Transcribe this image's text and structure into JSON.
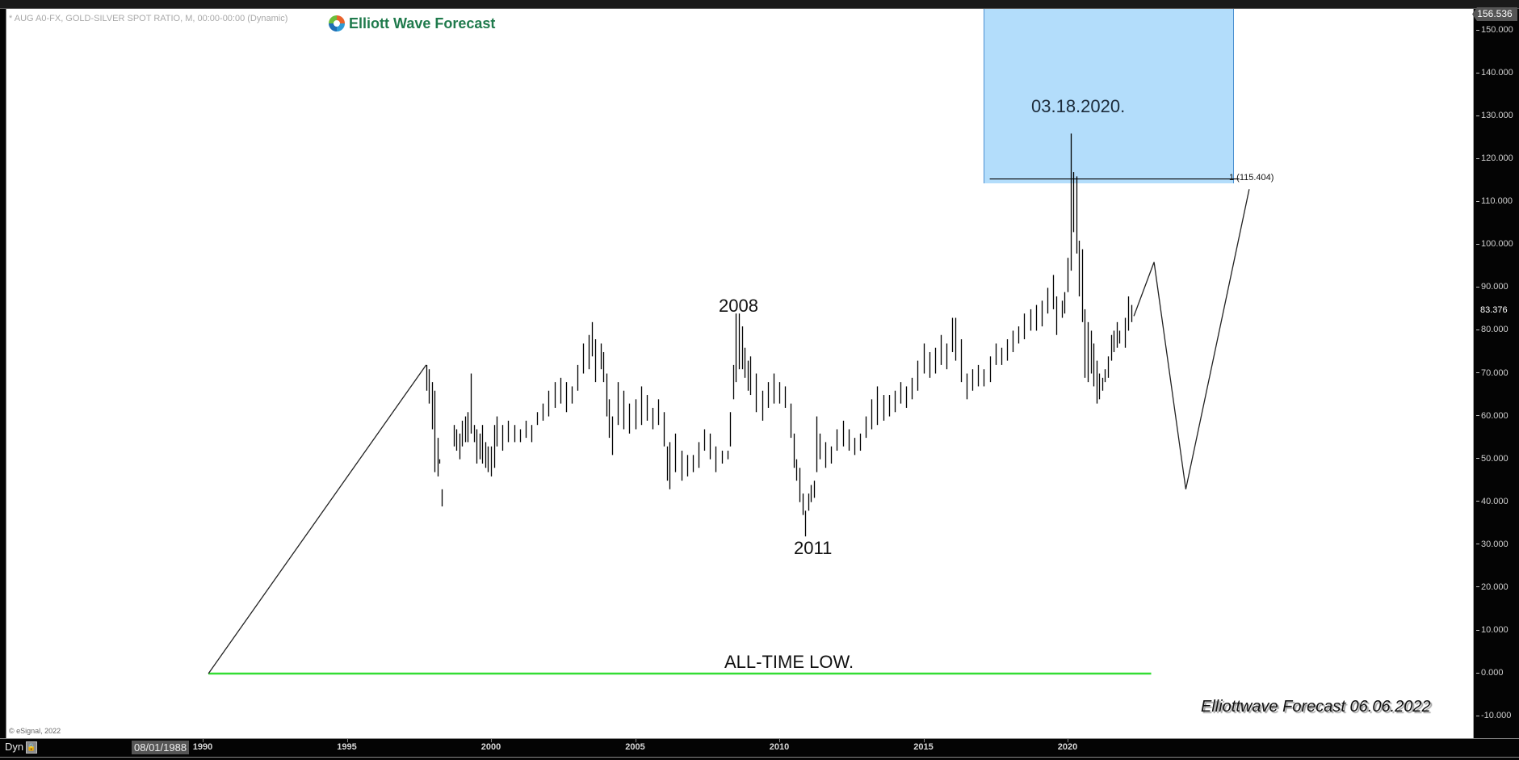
{
  "header": {
    "symbol_line": "* AUG A0-FX, GOLD-SILVER SPOT RATIO, M, 00:00-00:00 (Dynamic)",
    "logo_text": "Elliott Wave Forecast"
  },
  "footer": {
    "copyright": "© eSignal, 2022",
    "signature": "Elliottwave Forecast  06.06.2022",
    "dyn_label": "Dyn",
    "cursor_date": "08/01/1988"
  },
  "price_axis": {
    "top_badge": "156.536",
    "last_price": "83.376",
    "ticks": [
      "150.000",
      "140.000",
      "130.000",
      "120.000",
      "110.000",
      "100.000",
      "90.000",
      "80.000",
      "70.000",
      "60.000",
      "50.000",
      "40.000",
      "30.000",
      "20.000",
      "10.000",
      "0.000",
      "-10.000"
    ]
  },
  "time_axis": {
    "ticks": [
      "1990",
      "1995",
      "2000",
      "2005",
      "2010",
      "2015",
      "2020"
    ]
  },
  "annotations": {
    "label_2008": "2008",
    "label_2011": "2011",
    "label_peak": "03.18.2020.",
    "fib_label": "1 (115.404)",
    "all_time_low": "ALL-TIME LOW."
  },
  "colors": {
    "chart_bg": "#ffffff",
    "axis_bg": "#040404",
    "bars": "#000000",
    "target_box": "#b3ddfb",
    "all_time_low_line": "#33dd33",
    "logo_green": "#1f7a4c"
  },
  "chart_data": {
    "type": "ohlc-bar",
    "title": "GOLD-SILVER SPOT RATIO, Monthly",
    "xlabel": "",
    "ylabel": "",
    "ylim": [
      -14,
      157
    ],
    "xlim": [
      1989.4,
      2027.5
    ],
    "grid": false,
    "x_ticks": [
      1990,
      1995,
      2000,
      2005,
      2010,
      2015,
      2020
    ],
    "y_ticks": [
      -10,
      0,
      10,
      20,
      30,
      40,
      50,
      60,
      70,
      80,
      90,
      100,
      110,
      120,
      130,
      140,
      150
    ],
    "last_price": 83.376,
    "series": [
      {
        "name": "Gold/Silver ratio (monthly high-low, approx.)",
        "points": [
          {
            "t": 1997.75,
            "h": 72,
            "l": 66
          },
          {
            "t": 1997.85,
            "h": 71,
            "l": 63
          },
          {
            "t": 1997.95,
            "h": 68,
            "l": 57
          },
          {
            "t": 1998.05,
            "h": 66,
            "l": 47
          },
          {
            "t": 1998.15,
            "h": 55,
            "l": 46
          },
          {
            "t": 1998.2,
            "h": 50,
            "l": 49
          },
          {
            "t": 1998.3,
            "h": 43,
            "l": 39
          },
          {
            "t": 1998.7,
            "h": 58,
            "l": 53
          },
          {
            "t": 1998.8,
            "h": 57,
            "l": 52
          },
          {
            "t": 1998.9,
            "h": 56,
            "l": 50
          },
          {
            "t": 1999.0,
            "h": 59,
            "l": 53
          },
          {
            "t": 1999.1,
            "h": 60,
            "l": 54
          },
          {
            "t": 1999.2,
            "h": 61,
            "l": 54
          },
          {
            "t": 1999.3,
            "h": 70,
            "l": 56
          },
          {
            "t": 1999.4,
            "h": 58,
            "l": 54
          },
          {
            "t": 1999.5,
            "h": 57,
            "l": 49
          },
          {
            "t": 1999.6,
            "h": 56,
            "l": 50
          },
          {
            "t": 1999.7,
            "h": 58,
            "l": 49
          },
          {
            "t": 1999.8,
            "h": 54,
            "l": 48
          },
          {
            "t": 1999.9,
            "h": 53,
            "l": 47
          },
          {
            "t": 2000.0,
            "h": 53,
            "l": 46
          },
          {
            "t": 2000.1,
            "h": 58,
            "l": 48
          },
          {
            "t": 2000.2,
            "h": 60,
            "l": 53
          },
          {
            "t": 2000.4,
            "h": 58,
            "l": 52
          },
          {
            "t": 2000.6,
            "h": 59,
            "l": 54
          },
          {
            "t": 2000.8,
            "h": 58,
            "l": 54
          },
          {
            "t": 2001.0,
            "h": 57,
            "l": 54
          },
          {
            "t": 2001.2,
            "h": 59,
            "l": 55
          },
          {
            "t": 2001.4,
            "h": 58,
            "l": 54
          },
          {
            "t": 2001.6,
            "h": 61,
            "l": 58
          },
          {
            "t": 2001.8,
            "h": 63,
            "l": 59
          },
          {
            "t": 2002.0,
            "h": 66,
            "l": 60
          },
          {
            "t": 2002.2,
            "h": 68,
            "l": 62
          },
          {
            "t": 2002.4,
            "h": 69,
            "l": 63
          },
          {
            "t": 2002.6,
            "h": 68,
            "l": 61
          },
          {
            "t": 2002.8,
            "h": 67,
            "l": 63
          },
          {
            "t": 2003.0,
            "h": 72,
            "l": 66
          },
          {
            "t": 2003.2,
            "h": 77,
            "l": 70
          },
          {
            "t": 2003.4,
            "h": 79,
            "l": 71
          },
          {
            "t": 2003.5,
            "h": 82,
            "l": 74
          },
          {
            "t": 2003.6,
            "h": 78,
            "l": 68
          },
          {
            "t": 2003.8,
            "h": 77,
            "l": 71
          },
          {
            "t": 2003.9,
            "h": 75,
            "l": 68
          },
          {
            "t": 2004.0,
            "h": 70,
            "l": 60
          },
          {
            "t": 2004.1,
            "h": 64,
            "l": 55
          },
          {
            "t": 2004.2,
            "h": 60,
            "l": 51
          },
          {
            "t": 2004.4,
            "h": 68,
            "l": 58
          },
          {
            "t": 2004.6,
            "h": 66,
            "l": 57
          },
          {
            "t": 2004.8,
            "h": 63,
            "l": 56
          },
          {
            "t": 2005.0,
            "h": 64,
            "l": 57
          },
          {
            "t": 2005.2,
            "h": 67,
            "l": 58
          },
          {
            "t": 2005.4,
            "h": 65,
            "l": 59
          },
          {
            "t": 2005.6,
            "h": 62,
            "l": 57
          },
          {
            "t": 2005.8,
            "h": 64,
            "l": 58
          },
          {
            "t": 2006.0,
            "h": 61,
            "l": 53
          },
          {
            "t": 2006.1,
            "h": 53,
            "l": 45
          },
          {
            "t": 2006.2,
            "h": 54,
            "l": 43
          },
          {
            "t": 2006.4,
            "h": 56,
            "l": 47
          },
          {
            "t": 2006.6,
            "h": 52,
            "l": 45
          },
          {
            "t": 2006.8,
            "h": 51,
            "l": 46
          },
          {
            "t": 2007.0,
            "h": 51,
            "l": 47
          },
          {
            "t": 2007.2,
            "h": 54,
            "l": 48
          },
          {
            "t": 2007.4,
            "h": 57,
            "l": 52
          },
          {
            "t": 2007.6,
            "h": 56,
            "l": 50
          },
          {
            "t": 2007.8,
            "h": 53,
            "l": 47
          },
          {
            "t": 2008.0,
            "h": 52,
            "l": 49
          },
          {
            "t": 2008.2,
            "h": 52,
            "l": 50
          },
          {
            "t": 2008.3,
            "h": 61,
            "l": 53
          },
          {
            "t": 2008.4,
            "h": 72,
            "l": 64
          },
          {
            "t": 2008.5,
            "h": 84,
            "l": 68
          },
          {
            "t": 2008.6,
            "h": 84,
            "l": 71
          },
          {
            "t": 2008.7,
            "h": 81,
            "l": 71
          },
          {
            "t": 2008.8,
            "h": 76,
            "l": 69
          },
          {
            "t": 2008.9,
            "h": 73,
            "l": 66
          },
          {
            "t": 2009.0,
            "h": 74,
            "l": 65
          },
          {
            "t": 2009.2,
            "h": 70,
            "l": 61
          },
          {
            "t": 2009.4,
            "h": 66,
            "l": 59
          },
          {
            "t": 2009.6,
            "h": 68,
            "l": 62
          },
          {
            "t": 2009.8,
            "h": 70,
            "l": 63
          },
          {
            "t": 2010.0,
            "h": 68,
            "l": 63
          },
          {
            "t": 2010.2,
            "h": 67,
            "l": 62
          },
          {
            "t": 2010.4,
            "h": 63,
            "l": 55
          },
          {
            "t": 2010.5,
            "h": 56,
            "l": 48
          },
          {
            "t": 2010.6,
            "h": 50,
            "l": 45
          },
          {
            "t": 2010.7,
            "h": 48,
            "l": 40
          },
          {
            "t": 2010.8,
            "h": 42,
            "l": 37
          },
          {
            "t": 2010.9,
            "h": 38,
            "l": 32
          },
          {
            "t": 2011.0,
            "h": 42,
            "l": 38
          },
          {
            "t": 2011.1,
            "h": 44,
            "l": 40
          },
          {
            "t": 2011.2,
            "h": 45,
            "l": 41
          },
          {
            "t": 2011.3,
            "h": 60,
            "l": 47
          },
          {
            "t": 2011.4,
            "h": 56,
            "l": 50
          },
          {
            "t": 2011.6,
            "h": 54,
            "l": 48
          },
          {
            "t": 2011.8,
            "h": 53,
            "l": 49
          },
          {
            "t": 2012.0,
            "h": 57,
            "l": 52
          },
          {
            "t": 2012.2,
            "h": 59,
            "l": 53
          },
          {
            "t": 2012.4,
            "h": 57,
            "l": 52
          },
          {
            "t": 2012.6,
            "h": 55,
            "l": 51
          },
          {
            "t": 2012.8,
            "h": 56,
            "l": 52
          },
          {
            "t": 2013.0,
            "h": 60,
            "l": 55
          },
          {
            "t": 2013.2,
            "h": 64,
            "l": 57
          },
          {
            "t": 2013.4,
            "h": 67,
            "l": 58
          },
          {
            "t": 2013.6,
            "h": 65,
            "l": 59
          },
          {
            "t": 2013.8,
            "h": 65,
            "l": 60
          },
          {
            "t": 2014.0,
            "h": 66,
            "l": 61
          },
          {
            "t": 2014.2,
            "h": 68,
            "l": 63
          },
          {
            "t": 2014.4,
            "h": 67,
            "l": 62
          },
          {
            "t": 2014.6,
            "h": 69,
            "l": 64
          },
          {
            "t": 2014.8,
            "h": 73,
            "l": 66
          },
          {
            "t": 2015.0,
            "h": 77,
            "l": 70
          },
          {
            "t": 2015.2,
            "h": 75,
            "l": 69
          },
          {
            "t": 2015.4,
            "h": 76,
            "l": 70
          },
          {
            "t": 2015.6,
            "h": 79,
            "l": 72
          },
          {
            "t": 2015.8,
            "h": 77,
            "l": 71
          },
          {
            "t": 2016.0,
            "h": 83,
            "l": 75
          },
          {
            "t": 2016.1,
            "h": 83,
            "l": 73
          },
          {
            "t": 2016.3,
            "h": 78,
            "l": 68
          },
          {
            "t": 2016.5,
            "h": 70,
            "l": 64
          },
          {
            "t": 2016.7,
            "h": 71,
            "l": 66
          },
          {
            "t": 2016.9,
            "h": 72,
            "l": 67
          },
          {
            "t": 2017.1,
            "h": 71,
            "l": 67
          },
          {
            "t": 2017.3,
            "h": 74,
            "l": 68
          },
          {
            "t": 2017.5,
            "h": 77,
            "l": 72
          },
          {
            "t": 2017.7,
            "h": 76,
            "l": 72
          },
          {
            "t": 2017.9,
            "h": 78,
            "l": 73
          },
          {
            "t": 2018.1,
            "h": 80,
            "l": 75
          },
          {
            "t": 2018.3,
            "h": 81,
            "l": 77
          },
          {
            "t": 2018.5,
            "h": 84,
            "l": 78
          },
          {
            "t": 2018.7,
            "h": 85,
            "l": 80
          },
          {
            "t": 2018.9,
            "h": 86,
            "l": 80
          },
          {
            "t": 2019.1,
            "h": 87,
            "l": 81
          },
          {
            "t": 2019.3,
            "h": 90,
            "l": 84
          },
          {
            "t": 2019.5,
            "h": 93,
            "l": 85
          },
          {
            "t": 2019.6,
            "h": 88,
            "l": 79
          },
          {
            "t": 2019.8,
            "h": 87,
            "l": 83
          },
          {
            "t": 2019.9,
            "h": 89,
            "l": 84
          },
          {
            "t": 2020.0,
            "h": 97,
            "l": 89
          },
          {
            "t": 2020.1,
            "h": 126,
            "l": 94
          },
          {
            "t": 2020.2,
            "h": 117,
            "l": 103
          },
          {
            "t": 2020.3,
            "h": 116,
            "l": 98
          },
          {
            "t": 2020.4,
            "h": 101,
            "l": 88
          },
          {
            "t": 2020.5,
            "h": 99,
            "l": 82
          },
          {
            "t": 2020.6,
            "h": 85,
            "l": 69
          },
          {
            "t": 2020.7,
            "h": 82,
            "l": 68
          },
          {
            "t": 2020.8,
            "h": 80,
            "l": 70
          },
          {
            "t": 2020.9,
            "h": 77,
            "l": 67
          },
          {
            "t": 2021.0,
            "h": 73,
            "l": 63
          },
          {
            "t": 2021.1,
            "h": 70,
            "l": 64
          },
          {
            "t": 2021.2,
            "h": 69,
            "l": 66
          },
          {
            "t": 2021.3,
            "h": 71,
            "l": 68
          },
          {
            "t": 2021.4,
            "h": 74,
            "l": 69
          },
          {
            "t": 2021.5,
            "h": 79,
            "l": 73
          },
          {
            "t": 2021.6,
            "h": 80,
            "l": 75
          },
          {
            "t": 2021.7,
            "h": 82,
            "l": 76
          },
          {
            "t": 2021.8,
            "h": 80,
            "l": 77
          },
          {
            "t": 2022.0,
            "h": 83,
            "l": 76
          },
          {
            "t": 2022.1,
            "h": 88,
            "l": 80
          },
          {
            "t": 2022.2,
            "h": 86,
            "l": 82
          }
        ]
      },
      {
        "name": "Projection path (Elliott wave)",
        "type": "line",
        "points": [
          {
            "t": 2022.3,
            "v": 83.4
          },
          {
            "t": 2023.0,
            "v": 96
          },
          {
            "t": 2024.1,
            "v": 43
          },
          {
            "t": 2026.3,
            "v": 113
          }
        ]
      },
      {
        "name": "Historical wave line",
        "type": "line",
        "points": [
          {
            "t": 1990.2,
            "v": 0
          },
          {
            "t": 1997.75,
            "v": 72
          }
        ]
      }
    ],
    "annotations": [
      {
        "text": "2008",
        "t": 2008.5,
        "v": 85
      },
      {
        "text": "2011",
        "t": 2011.0,
        "v": 30
      },
      {
        "text": "03.18.2020.",
        "t": 2020.2,
        "v": 129
      },
      {
        "text": "1 (115.404)",
        "t": 2026.0,
        "v": 115.404
      },
      {
        "text": "ALL-TIME LOW.",
        "t": 2011.5,
        "v": 0
      }
    ],
    "target_zone": {
      "t_start": 2017.3,
      "t_end": 2025.9,
      "v_low": 115.404,
      "v_high": 157
    },
    "horizontal_line": {
      "name": "all-time low",
      "v": 0,
      "t_start": 1990.2,
      "t_end": 2022.9,
      "color": "#33dd33"
    }
  }
}
